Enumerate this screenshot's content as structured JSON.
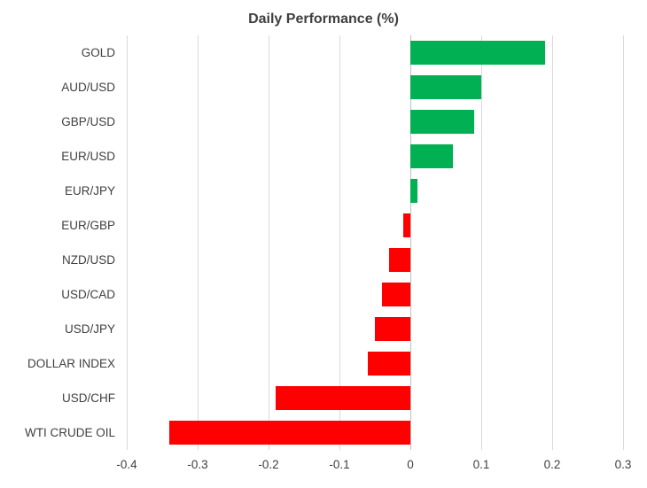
{
  "chart_data": {
    "type": "bar",
    "orientation": "horizontal",
    "title": "Daily Performance (%)",
    "categories": [
      "GOLD",
      "AUD/USD",
      "GBP/USD",
      "EUR/USD",
      "EUR/JPY",
      "EUR/GBP",
      "NZD/USD",
      "USD/CAD",
      "USD/JPY",
      "DOLLAR INDEX",
      "USD/CHF",
      "WTI CRUDE OIL"
    ],
    "values": [
      0.19,
      0.1,
      0.09,
      0.06,
      0.01,
      -0.01,
      -0.03,
      -0.04,
      -0.05,
      -0.06,
      -0.19,
      -0.34
    ],
    "xlabel": "",
    "ylabel": "",
    "xlim": [
      -0.4,
      0.3
    ],
    "xticks": [
      -0.4,
      -0.3,
      -0.2,
      -0.1,
      0,
      0.1,
      0.2,
      0.3
    ],
    "xtick_labels": [
      "-0.4",
      "-0.3",
      "-0.2",
      "-0.1",
      "0",
      "0.1",
      "0.2",
      "0.3"
    ],
    "grid": "vertical",
    "legend": "none",
    "colors": {
      "positive": "#00b052",
      "negative": "#fe0000"
    }
  }
}
